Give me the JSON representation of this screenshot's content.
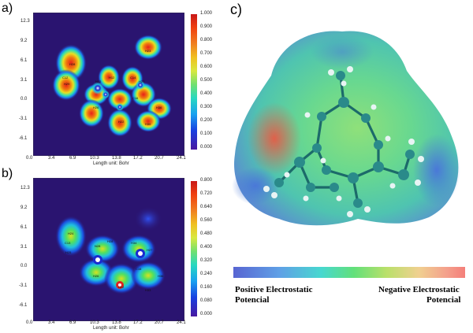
{
  "panels": {
    "a": "a)",
    "b": "b)",
    "c": "c)"
  },
  "map_a": {
    "yticks": [
      "12.3",
      "9.2",
      "6.1",
      "3.1",
      "0.0",
      "-3.1",
      "-6.1"
    ],
    "xticks": [
      "0.0",
      "3.4",
      "6.9",
      "10.3",
      "13.8",
      "17.2",
      "20.7",
      "24.1"
    ],
    "unit": "Length unit: Bohr",
    "colorbar": [
      "1.000",
      "0.900",
      "0.800",
      "0.700",
      "0.600",
      "0.500",
      "0.400",
      "0.300",
      "0.200",
      "0.100",
      "0.000"
    ]
  },
  "map_b": {
    "yticks": [
      "12.3",
      "9.2",
      "6.1",
      "3.1",
      "0.0",
      "-3.1",
      "-6.1"
    ],
    "xticks": [
      "0.0",
      "3.4",
      "6.9",
      "10.3",
      "13.8",
      "17.2",
      "20.7",
      "24.1"
    ],
    "unit": "Length unit: Bohr",
    "colorbar": [
      "0.800",
      "0.720",
      "0.640",
      "0.560",
      "0.480",
      "0.400",
      "0.320",
      "0.240",
      "0.160",
      "0.080",
      "0.000"
    ]
  },
  "esp_legend": {
    "left_line1": "Positive Electrostatic",
    "left_line2": "Potencial",
    "right_line1": "Negative Electrostatic",
    "right_line2": "Potencial"
  }
}
